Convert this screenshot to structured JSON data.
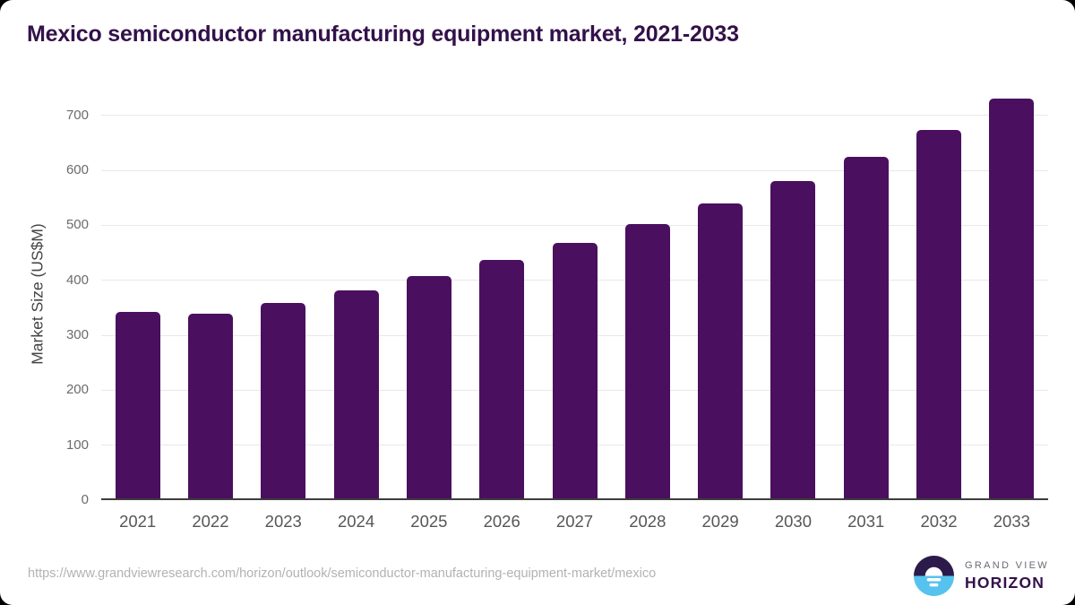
{
  "chart_data": {
    "type": "bar",
    "title": "Mexico semiconductor manufacturing equipment market, 2021-2033",
    "categories": [
      "2021",
      "2022",
      "2023",
      "2024",
      "2025",
      "2026",
      "2027",
      "2028",
      "2029",
      "2030",
      "2031",
      "2032",
      "2033"
    ],
    "values": [
      342,
      339,
      359,
      382,
      408,
      437,
      468,
      502,
      539,
      580,
      625,
      673,
      730
    ],
    "xlabel": "",
    "ylabel": "Market Size (US$M)",
    "ylim": [
      0,
      750
    ],
    "yticks": [
      0,
      100,
      200,
      300,
      400,
      500,
      600,
      700
    ],
    "grid": true,
    "legend": "none",
    "bar_color": "#4a0f5e",
    "gridline_color": "#e8e8e8",
    "axis_line_color": "#3d3d3d",
    "tick_label_color": "#6b6b6b",
    "title_color": "#33114a"
  },
  "footer": {
    "source_url": "https://www.grandviewresearch.com/horizon/outlook/semiconductor-manufacturing-equipment-market/mexico",
    "logo": {
      "icon": "horizon-sun-circle-icon",
      "line1": "GRAND VIEW",
      "line2": "HORIZON",
      "icon_top_color": "#2b1a4a",
      "icon_bottom_color": "#56c3ee"
    }
  }
}
